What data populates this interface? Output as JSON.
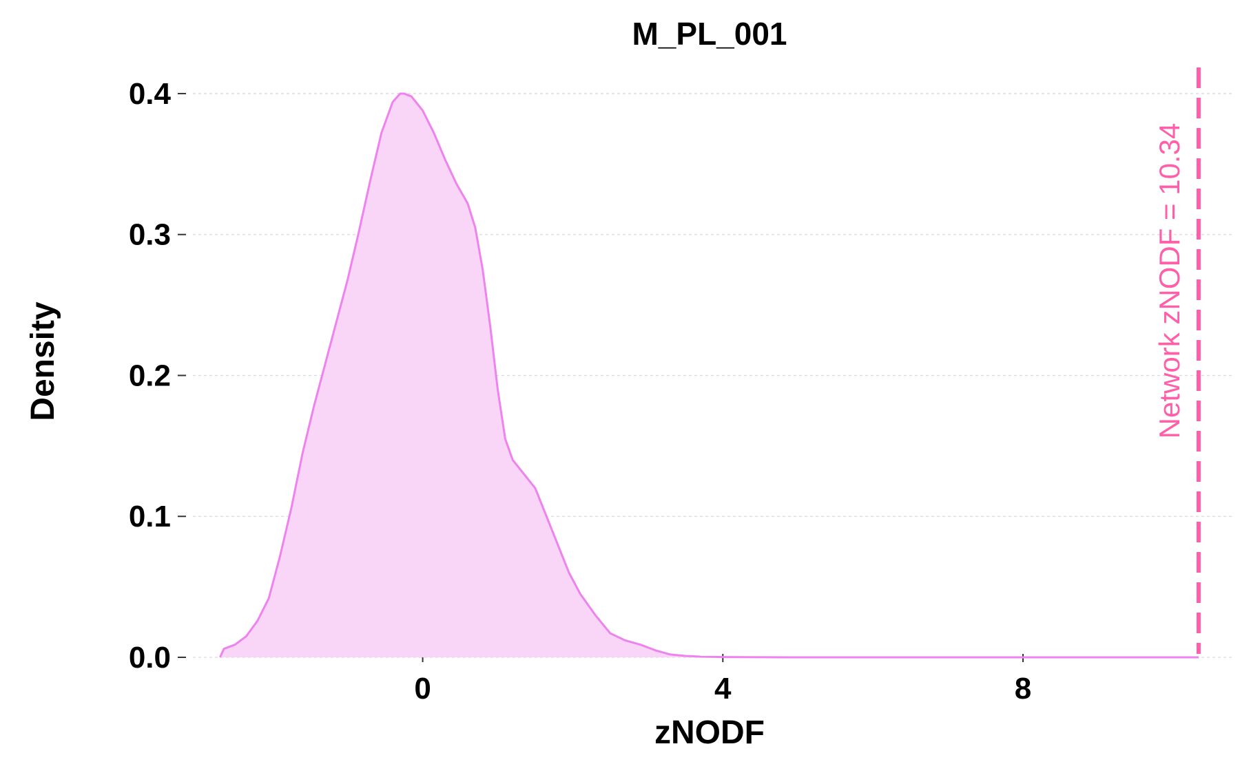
{
  "chart_data": {
    "type": "area",
    "title": "M_PL_001",
    "xlabel": "zNODF",
    "ylabel": "Density",
    "xlim": [
      -3.2,
      10.8
    ],
    "ylim": [
      0,
      0.42
    ],
    "x_ticks": [
      {
        "value": 0,
        "label": "0"
      },
      {
        "value": 4,
        "label": "4"
      },
      {
        "value": 8,
        "label": "8"
      }
    ],
    "y_ticks": [
      {
        "value": 0.0,
        "label": "0.0"
      },
      {
        "value": 0.1,
        "label": "0.1"
      },
      {
        "value": 0.2,
        "label": "0.2"
      },
      {
        "value": 0.3,
        "label": "0.3"
      },
      {
        "value": 0.4,
        "label": "0.4"
      }
    ],
    "grid": "horizontal",
    "legend": "none",
    "fill_color": "#f9d5f7",
    "line_color": "#ee82ee",
    "reference_line": {
      "x": 10.34,
      "label": "Network zNODF = 10.34",
      "color": "#ff5ea8"
    },
    "series": [
      {
        "x": [
          -2.7,
          -2.65,
          -2.5,
          -2.35,
          -2.2,
          -2.05,
          -1.9,
          -1.75,
          -1.6,
          -1.45,
          -1.3,
          -1.15,
          -1.0,
          -0.85,
          -0.7,
          -0.55,
          -0.4,
          -0.3,
          -0.25,
          -0.15,
          0.0,
          0.15,
          0.3,
          0.45,
          0.6,
          0.7,
          0.8,
          0.9,
          1.0,
          1.1,
          1.2,
          1.35,
          1.5,
          1.65,
          1.8,
          1.95,
          2.1,
          2.3,
          2.5,
          2.7,
          2.9,
          3.1,
          3.3,
          3.5,
          3.7,
          4.0,
          5.0,
          6.0,
          7.0,
          8.0,
          9.0,
          10.0,
          10.34
        ],
        "values": [
          0.0,
          0.006,
          0.009,
          0.015,
          0.026,
          0.042,
          0.072,
          0.106,
          0.145,
          0.178,
          0.208,
          0.238,
          0.268,
          0.302,
          0.338,
          0.372,
          0.394,
          0.4,
          0.4,
          0.398,
          0.388,
          0.372,
          0.353,
          0.336,
          0.322,
          0.305,
          0.275,
          0.235,
          0.19,
          0.155,
          0.14,
          0.13,
          0.12,
          0.1,
          0.08,
          0.06,
          0.045,
          0.03,
          0.017,
          0.012,
          0.009,
          0.005,
          0.002,
          0.001,
          0.0005,
          0.0002,
          0.0,
          0.0,
          0.0,
          0.0,
          0.0,
          0.0,
          0.0
        ]
      }
    ]
  }
}
